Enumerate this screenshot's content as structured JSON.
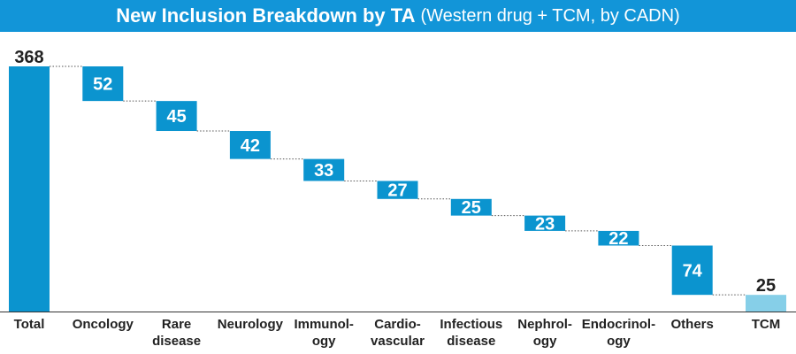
{
  "title": {
    "main": "New Inclusion Breakdown by TA",
    "subtitle": "(Western drug + TCM, by CADN)"
  },
  "colors": {
    "title_bg": "#1295d8",
    "bar_main": "#0b94cf",
    "bar_tcm": "#86cfe8",
    "connector": "#555555",
    "axis": "#333333",
    "label_dark": "#222222",
    "label_light": "#ffffff"
  },
  "chart_data": {
    "type": "bar",
    "variant": "waterfall",
    "title": "New Inclusion Breakdown by TA (Western drug + TCM, by CADN)",
    "categories": [
      [
        "Total"
      ],
      [
        "Oncology"
      ],
      [
        "Rare",
        "disease"
      ],
      [
        "Neurology"
      ],
      [
        "Immunol-",
        "ogy"
      ],
      [
        "Cardio-",
        "vascular"
      ],
      [
        "Infectious",
        "disease"
      ],
      [
        "Nephrol-",
        "ogy"
      ],
      [
        "Endocrinol-",
        "ogy"
      ],
      [
        "Others"
      ],
      [
        "TCM"
      ]
    ],
    "values": [
      368,
      52,
      45,
      42,
      33,
      27,
      25,
      23,
      22,
      74,
      25
    ],
    "kinds": [
      "total",
      "step",
      "step",
      "step",
      "step",
      "step",
      "step",
      "step",
      "step",
      "step",
      "tcm"
    ],
    "ylim": [
      0,
      368
    ],
    "grid": false,
    "connectors": true
  }
}
